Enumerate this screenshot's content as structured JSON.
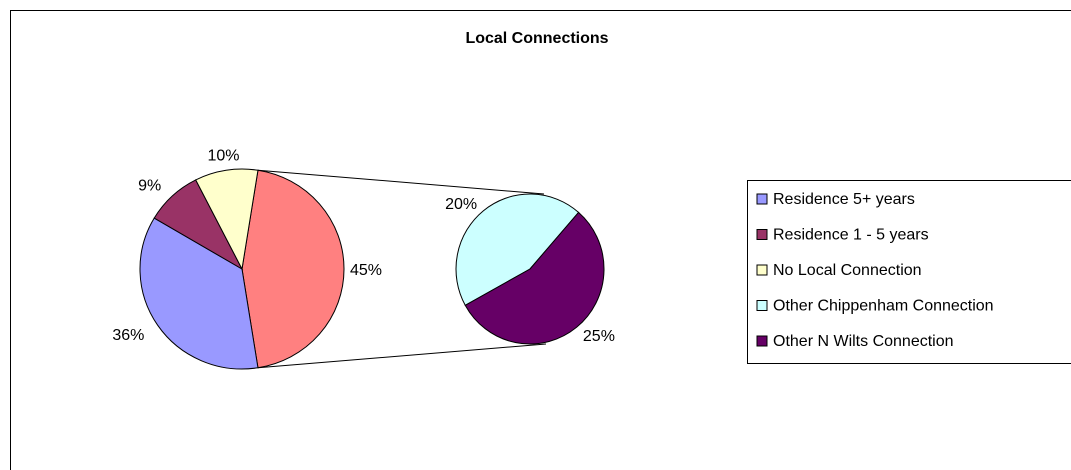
{
  "chart_data": {
    "type": "pie",
    "title": "Local Connections",
    "subtype": "pie-of-pie",
    "legend_position": "right",
    "slices": [
      {
        "label": "Residence 5+ years",
        "value": 36,
        "display": "36%",
        "color": "#9999ff",
        "group": "main"
      },
      {
        "label": "Residence 1 - 5 years",
        "value": 9,
        "display": "9%",
        "color": "#993366",
        "group": "main"
      },
      {
        "label": "No Local Connection",
        "value": 10,
        "display": "10%",
        "color": "#ffffcc",
        "group": "main"
      },
      {
        "label": "Other Chippenham Connection",
        "value": 20,
        "display": "20%",
        "color": "#ccffff",
        "group": "secondary"
      },
      {
        "label": "Other N Wilts Connection",
        "value": 25,
        "display": "25%",
        "color": "#660066",
        "group": "secondary"
      }
    ],
    "combined_slice": {
      "display": "45%",
      "value": 45,
      "color": "#ff8080"
    }
  }
}
